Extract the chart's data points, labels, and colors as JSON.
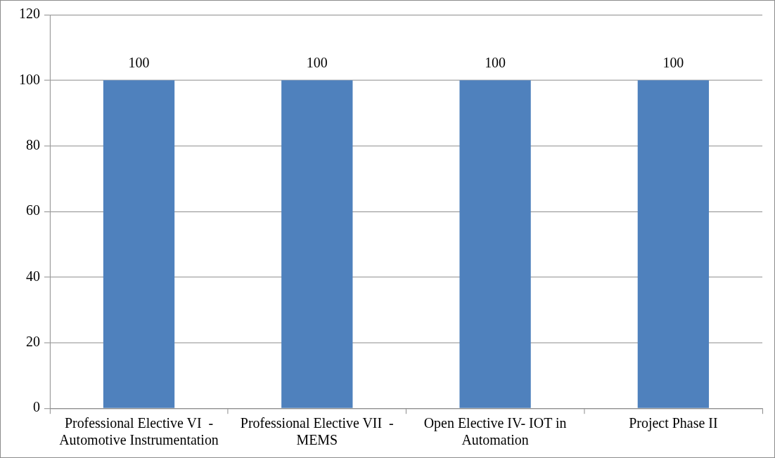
{
  "chart_data": {
    "type": "bar",
    "categories": [
      "Professional Elective VI  - Automotive Instrumentation",
      "Professional Elective VII  - MEMS",
      "Open Elective IV- IOT in Automation",
      "Project Phase II"
    ],
    "values": [
      100,
      100,
      100,
      100
    ],
    "color": "#4f81bd",
    "ylim": [
      0,
      120
    ],
    "yticks": [
      0,
      20,
      40,
      60,
      80,
      100,
      120
    ],
    "grid": "y",
    "legend": false,
    "data_labels": true
  }
}
